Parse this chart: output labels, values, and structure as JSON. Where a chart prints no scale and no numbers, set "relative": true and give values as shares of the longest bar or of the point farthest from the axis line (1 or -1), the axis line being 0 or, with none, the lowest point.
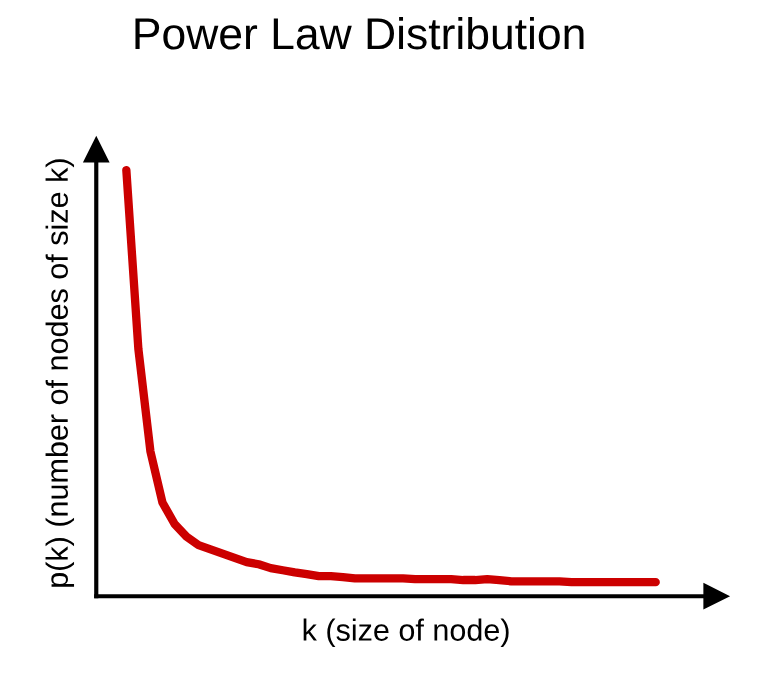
{
  "chart_data": {
    "type": "line",
    "title": "Power Law Distribution",
    "xlabel": "k (size of node)",
    "ylabel": "p(k) (number of nodes of size k)",
    "relative": true,
    "grid": false,
    "legend": false,
    "tick_labels": false,
    "categories": [
      null,
      null,
      null,
      null,
      null,
      null,
      null,
      null,
      null,
      null,
      null,
      null,
      null,
      null,
      null,
      null,
      null,
      null,
      null,
      null,
      null,
      null,
      null,
      null,
      null,
      null,
      null,
      null,
      null,
      null,
      null,
      null,
      null,
      null,
      null,
      null,
      null,
      null,
      null,
      null,
      null,
      null,
      null,
      null,
      null
    ],
    "series": [
      {
        "color": "#cc0000",
        "values": [
          1,
          0.58,
          0.34,
          0.22,
          0.17,
          0.14,
          0.12,
          0.11,
          0.1,
          0.09,
          0.08,
          0.075,
          0.066,
          0.061,
          0.056,
          0.052,
          0.047,
          0.047,
          0.045,
          0.042,
          0.042,
          0.042,
          0.042,
          0.042,
          0.04,
          0.04,
          0.04,
          0.04,
          0.038,
          0.038,
          0.04,
          0.038,
          0.035,
          0.035,
          0.035,
          0.035,
          0.035,
          0.033,
          0.033,
          0.033,
          0.033,
          0.033,
          0.033,
          0.033,
          0.033
        ]
      }
    ]
  }
}
